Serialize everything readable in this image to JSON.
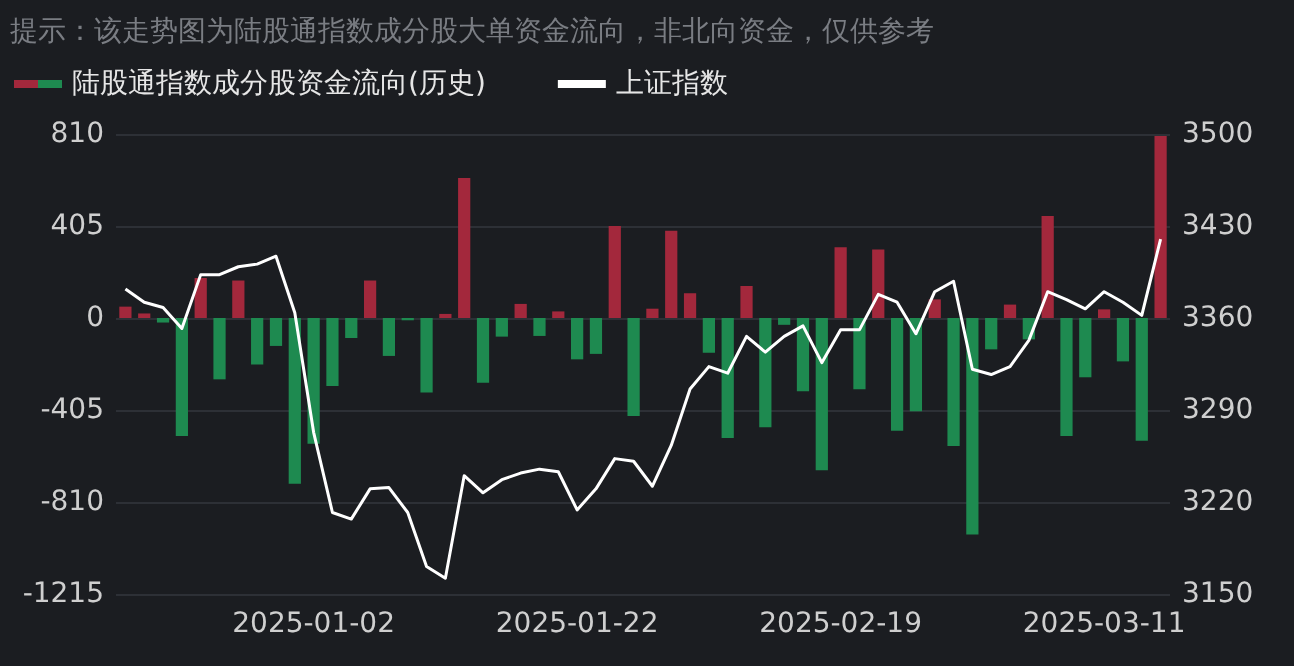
{
  "chart_data": {
    "type": "bar",
    "title": "提示：该走势图为陆股通指数成分股大单资金流向，非北向资金，仅供参考",
    "categories": [
      null,
      null,
      null,
      null,
      null,
      null,
      null,
      null,
      null,
      null,
      "2025-01-02",
      null,
      null,
      null,
      null,
      null,
      null,
      null,
      null,
      null,
      null,
      null,
      null,
      null,
      "2025-01-22",
      null,
      null,
      null,
      null,
      null,
      null,
      null,
      null,
      null,
      null,
      null,
      null,
      null,
      "2025-02-19",
      null,
      null,
      null,
      null,
      null,
      null,
      null,
      null,
      null,
      null,
      null,
      null,
      null,
      "2025-03-11",
      null,
      null,
      null
    ],
    "series": [
      {
        "name": "陆股通指数成分股资金流向(历史)",
        "values": [
          50,
          20,
          -20,
          -519,
          176,
          -270,
          165,
          -205,
          -123,
          -730,
          -554,
          -299,
          -88,
          165,
          -167,
          -10,
          -328,
          18,
          616,
          -285,
          -82,
          62,
          -79,
          29,
          -182,
          -158,
          405,
          -431,
          41,
          384,
          109,
          -153,
          -528,
          141,
          -481,
          -30,
          -323,
          -670,
          311,
          -314,
          302,
          -496,
          -411,
          82,
          -563,
          -953,
          -138,
          59,
          -94,
          449,
          -519,
          -261,
          38,
          -191,
          -540,
          801
        ],
        "colors": [
          "#a3283c",
          "#a3283c",
          "#1e8a50",
          "#1e8a50",
          "#a3283c",
          "#1e8a50",
          "#a3283c",
          "#1e8a50",
          "#1e8a50",
          "#1e8a50",
          "#1e8a50",
          "#1e8a50",
          "#1e8a50",
          "#a3283c",
          "#1e8a50",
          "#1e8a50",
          "#1e8a50",
          "#a3283c",
          "#a3283c",
          "#1e8a50",
          "#1e8a50",
          "#a3283c",
          "#1e8a50",
          "#a3283c",
          "#1e8a50",
          "#1e8a50",
          "#a3283c",
          "#1e8a50",
          "#a3283c",
          "#a3283c",
          "#a3283c",
          "#1e8a50",
          "#1e8a50",
          "#a3283c",
          "#1e8a50",
          "#1e8a50",
          "#1e8a50",
          "#1e8a50",
          "#a3283c",
          "#1e8a50",
          "#a3283c",
          "#1e8a50",
          "#1e8a50",
          "#a3283c",
          "#1e8a50",
          "#1e8a50",
          "#1e8a50",
          "#a3283c",
          "#1e8a50",
          "#a3283c",
          "#1e8a50",
          "#1e8a50",
          "#a3283c",
          "#1e8a50",
          "#1e8a50",
          "#a3283c"
        ]
      },
      {
        "name": "上证指数",
        "type": "line",
        "axis": "y2",
        "color": "#ffffff",
        "values": [
          3382,
          3372,
          3368,
          3352,
          3393,
          3393,
          3399,
          3401,
          3407,
          3364,
          3273,
          3212,
          3207,
          3230,
          3231,
          3212,
          3171,
          3162,
          3240,
          3227,
          3237,
          3242,
          3245,
          3243,
          3214,
          3230,
          3253,
          3251,
          3232,
          3263,
          3306,
          3323,
          3318,
          3346,
          3334,
          3346,
          3354,
          3326,
          3351,
          3351,
          3378,
          3372,
          3348,
          3380,
          3388,
          3321,
          3317,
          3323,
          3343,
          3380,
          3374,
          3367,
          3380,
          3372,
          3362,
          3420
        ]
      }
    ],
    "ylim": [
      -1215,
      810
    ],
    "yticks": [
      -1215,
      -810,
      -405,
      0,
      405,
      810
    ],
    "y2lim": [
      3150,
      3500
    ],
    "y2ticks": [
      3150,
      3220,
      3290,
      3360,
      3430,
      3500
    ],
    "grid": "y",
    "legend": "top left",
    "marker": "none"
  }
}
